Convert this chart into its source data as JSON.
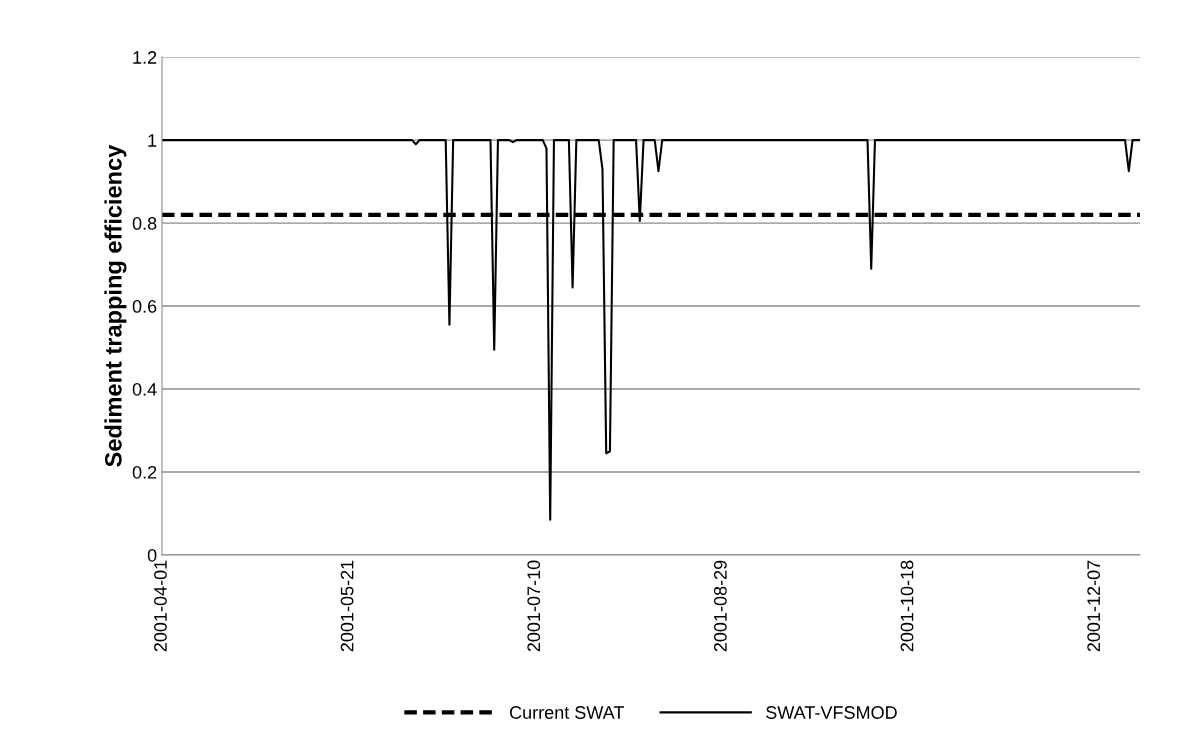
{
  "chart_data": {
    "type": "line",
    "ylabel": "Sediment trapping efficiency",
    "xlim": [
      "2001-04-01",
      "2001-12-19"
    ],
    "xticks": [
      "2001-04-01",
      "2001-05-21",
      "2001-07-10",
      "2001-08-29",
      "2001-10-18",
      "2001-12-07"
    ],
    "ylim": [
      0,
      1.2
    ],
    "yticks": [
      0,
      0.2,
      0.4,
      0.6,
      0.8,
      1,
      1.2
    ],
    "grid": "y",
    "legend": "bottom",
    "series": [
      {
        "name": "Current SWAT",
        "color": "#000000",
        "line_style": "dashed",
        "x": [
          "2001-04-01",
          "2001-12-19"
        ],
        "values": [
          0.82,
          0.82
        ]
      },
      {
        "name": "SWAT-VFSMOD",
        "color": "#000000",
        "line_style": "solid",
        "x": [
          "2001-04-01",
          "2001-06-07",
          "2001-06-08",
          "2001-06-09",
          "2001-06-16",
          "2001-06-17",
          "2001-06-18",
          "2001-06-28",
          "2001-06-29",
          "2001-06-30",
          "2001-07-03",
          "2001-07-04",
          "2001-07-05",
          "2001-07-12",
          "2001-07-13",
          "2001-07-14",
          "2001-07-15",
          "2001-07-19",
          "2001-07-20",
          "2001-07-21",
          "2001-07-27",
          "2001-07-28",
          "2001-07-29",
          "2001-07-30",
          "2001-07-31",
          "2001-08-06",
          "2001-08-07",
          "2001-08-08",
          "2001-08-11",
          "2001-08-12",
          "2001-08-13",
          "2001-10-07",
          "2001-10-08",
          "2001-10-09",
          "2001-12-15",
          "2001-12-16",
          "2001-12-17",
          "2001-12-19"
        ],
        "values": [
          1,
          1,
          0.99,
          1,
          1,
          0.555,
          1,
          1,
          0.495,
          1,
          1,
          0.995,
          1,
          1,
          0.98,
          0.085,
          1,
          1,
          0.645,
          1,
          1,
          0.93,
          0.245,
          0.25,
          1,
          1,
          0.805,
          1,
          1,
          0.925,
          1,
          1,
          0.69,
          1,
          1,
          0.925,
          1,
          1
        ]
      }
    ]
  }
}
